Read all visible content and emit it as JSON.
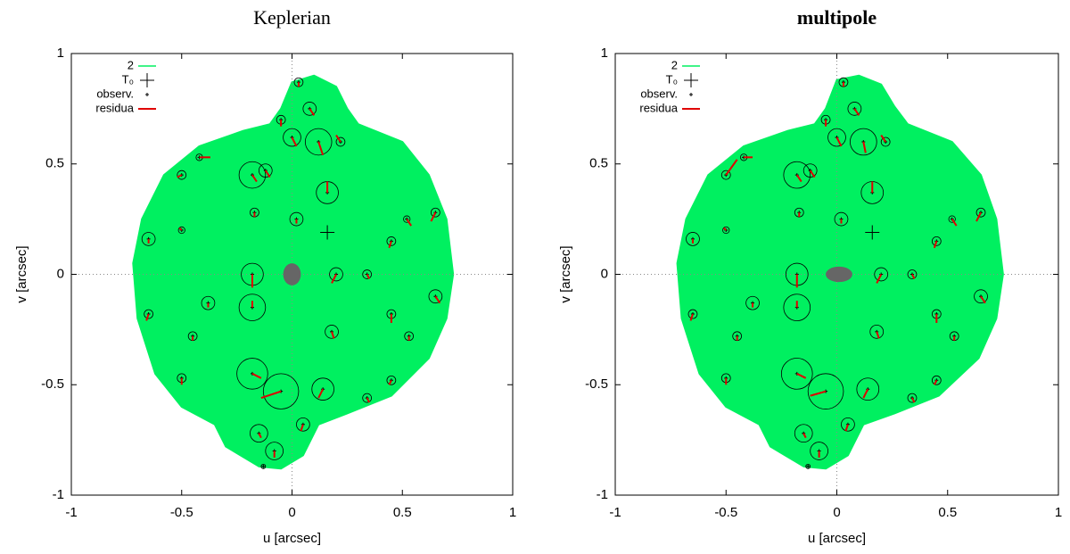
{
  "chart_data": [
    {
      "type": "scatter",
      "title": "Keplerian",
      "title_bold": false,
      "xlabel": "u [arcsec]",
      "ylabel": "v [arcsec]",
      "xlim": [
        -1,
        1
      ],
      "ylim": [
        -1,
        1
      ],
      "xticks": [
        -1,
        -0.5,
        0,
        0.5,
        1
      ],
      "yticks": [
        -1,
        -0.5,
        0,
        0.5,
        1
      ],
      "zero_lines": true,
      "legend": "upper left",
      "orbit": {
        "name": "2",
        "color": "#00f060",
        "x": [
          -0.05,
          0.0,
          0.1,
          0.2,
          0.25,
          0.3,
          0.5,
          0.62,
          0.7,
          0.73,
          0.7,
          0.62,
          0.45,
          0.25,
          0.12,
          0.05,
          -0.05,
          -0.15,
          -0.3,
          -0.35,
          -0.5,
          -0.62,
          -0.7,
          -0.72,
          -0.68,
          -0.58,
          -0.42,
          -0.22,
          -0.1
        ],
        "values": [
          0.75,
          0.87,
          0.9,
          0.85,
          0.75,
          0.68,
          0.6,
          0.45,
          0.25,
          0.0,
          -0.2,
          -0.38,
          -0.55,
          -0.63,
          -0.68,
          -0.82,
          -0.88,
          -0.87,
          -0.78,
          -0.68,
          -0.6,
          -0.45,
          -0.2,
          0.05,
          0.25,
          0.45,
          0.58,
          0.65,
          0.68
        ]
      },
      "t0": {
        "name": "T₀",
        "color": "#000",
        "x": 0.16,
        "value": 0.19
      },
      "body": {
        "color": "#666666",
        "x": 0,
        "value": 0,
        "rx": 0.04,
        "ry": 0.05
      },
      "observ": {
        "name": "observ.",
        "color": "#000",
        "x": [
          0.03,
          0.08,
          -0.05,
          0.0,
          0.12,
          0.22,
          -0.18,
          -0.12,
          -0.5,
          -0.42,
          0.16,
          0.02,
          -0.17,
          0.52,
          0.65,
          -0.65,
          -0.5,
          0.45,
          -0.18,
          -0.18,
          0.2,
          0.34,
          0.65,
          -0.38,
          -0.65,
          0.45,
          0.18,
          0.53,
          -0.45,
          -0.18,
          -0.05,
          0.14,
          0.34,
          0.45,
          -0.5,
          0.05,
          -0.15,
          -0.08,
          -0.13
        ],
        "values": [
          0.87,
          0.75,
          0.7,
          0.62,
          0.6,
          0.6,
          0.45,
          0.47,
          0.45,
          0.53,
          0.37,
          0.25,
          0.28,
          0.25,
          0.28,
          0.16,
          0.2,
          0.15,
          0.0,
          -0.15,
          0.0,
          0.0,
          -0.1,
          -0.13,
          -0.18,
          -0.18,
          -0.26,
          -0.28,
          -0.28,
          -0.45,
          -0.53,
          -0.52,
          -0.56,
          -0.48,
          -0.47,
          -0.68,
          -0.72,
          -0.8,
          -0.87
        ],
        "sizes": [
          0.02,
          0.03,
          0.02,
          0.04,
          0.06,
          0.02,
          0.06,
          0.03,
          0.02,
          0.015,
          0.05,
          0.03,
          0.02,
          0.015,
          0.02,
          0.03,
          0.015,
          0.02,
          0.05,
          0.06,
          0.03,
          0.02,
          0.03,
          0.03,
          0.02,
          0.02,
          0.03,
          0.02,
          0.02,
          0.07,
          0.08,
          0.05,
          0.02,
          0.02,
          0.02,
          0.03,
          0.04,
          0.04,
          0.01
        ]
      },
      "residua": {
        "name": "residua",
        "color": "#e00000",
        "x": [
          0.03,
          0.1,
          -0.05,
          0.02,
          0.14,
          0.2,
          -0.16,
          -0.1,
          -0.52,
          -0.37,
          0.16,
          0.02,
          -0.17,
          0.54,
          0.63,
          -0.65,
          -0.51,
          0.44,
          -0.18,
          -0.18,
          0.18,
          0.35,
          0.67,
          -0.38,
          -0.66,
          0.45,
          0.19,
          0.53,
          -0.45,
          -0.14,
          -0.14,
          0.12,
          0.35,
          0.44,
          -0.5,
          0.04,
          -0.14,
          -0.08,
          -0.13
        ],
        "values": [
          0.85,
          0.72,
          0.67,
          0.58,
          0.54,
          0.63,
          0.42,
          0.44,
          0.44,
          0.53,
          0.42,
          0.23,
          0.26,
          0.22,
          0.24,
          0.14,
          0.21,
          0.12,
          -0.06,
          -0.12,
          -0.04,
          -0.02,
          -0.13,
          -0.15,
          -0.21,
          -0.22,
          -0.29,
          -0.3,
          -0.3,
          -0.47,
          -0.56,
          -0.56,
          -0.58,
          -0.5,
          -0.5,
          -0.71,
          -0.74,
          -0.83,
          -0.87
        ]
      }
    },
    {
      "type": "scatter",
      "title": "multipole",
      "title_bold": true,
      "xlabel": "u [arcsec]",
      "ylabel": "v [arcsec]",
      "xlim": [
        -1,
        1
      ],
      "ylim": [
        -1,
        1
      ],
      "xticks": [
        -1,
        -0.5,
        0,
        0.5,
        1
      ],
      "yticks": [
        -1,
        -0.5,
        0,
        0.5,
        1
      ],
      "zero_lines": true,
      "legend": "upper left",
      "orbit": {
        "name": "2",
        "color": "#00f060",
        "x": [
          -0.05,
          0.0,
          0.1,
          0.2,
          0.26,
          0.32,
          0.52,
          0.65,
          0.72,
          0.75,
          0.72,
          0.64,
          0.46,
          0.26,
          0.12,
          0.05,
          -0.05,
          -0.15,
          -0.3,
          -0.35,
          -0.5,
          -0.62,
          -0.7,
          -0.72,
          -0.68,
          -0.58,
          -0.42,
          -0.22,
          -0.1
        ],
        "values": [
          0.75,
          0.88,
          0.9,
          0.86,
          0.76,
          0.68,
          0.6,
          0.45,
          0.25,
          0.0,
          -0.2,
          -0.38,
          -0.55,
          -0.63,
          -0.68,
          -0.82,
          -0.88,
          -0.87,
          -0.78,
          -0.68,
          -0.6,
          -0.45,
          -0.2,
          0.05,
          0.25,
          0.45,
          0.58,
          0.65,
          0.68
        ]
      },
      "t0": {
        "name": "T₀",
        "color": "#000",
        "x": 0.16,
        "value": 0.19
      },
      "body": {
        "color": "#666666",
        "x": 0.01,
        "value": 0,
        "rx": 0.06,
        "ry": 0.035
      },
      "observ": {
        "name": "observ.",
        "color": "#000",
        "x": [
          0.03,
          0.08,
          -0.05,
          0.0,
          0.12,
          0.22,
          -0.18,
          -0.12,
          -0.5,
          -0.42,
          0.16,
          0.02,
          -0.17,
          0.52,
          0.65,
          -0.65,
          -0.5,
          0.45,
          -0.18,
          -0.18,
          0.2,
          0.34,
          0.65,
          -0.38,
          -0.65,
          0.45,
          0.18,
          0.53,
          -0.45,
          -0.18,
          -0.05,
          0.14,
          0.34,
          0.45,
          -0.5,
          0.05,
          -0.15,
          -0.08,
          -0.13
        ],
        "values": [
          0.87,
          0.75,
          0.7,
          0.62,
          0.6,
          0.6,
          0.45,
          0.47,
          0.45,
          0.53,
          0.37,
          0.25,
          0.28,
          0.25,
          0.28,
          0.16,
          0.2,
          0.15,
          0.0,
          -0.15,
          0.0,
          0.0,
          -0.1,
          -0.13,
          -0.18,
          -0.18,
          -0.26,
          -0.28,
          -0.28,
          -0.45,
          -0.53,
          -0.52,
          -0.56,
          -0.48,
          -0.47,
          -0.68,
          -0.72,
          -0.8,
          -0.87
        ],
        "sizes": [
          0.02,
          0.03,
          0.02,
          0.04,
          0.06,
          0.02,
          0.06,
          0.03,
          0.02,
          0.015,
          0.05,
          0.03,
          0.02,
          0.015,
          0.02,
          0.03,
          0.015,
          0.02,
          0.05,
          0.06,
          0.03,
          0.02,
          0.03,
          0.03,
          0.02,
          0.02,
          0.03,
          0.02,
          0.02,
          0.07,
          0.08,
          0.05,
          0.02,
          0.02,
          0.02,
          0.03,
          0.04,
          0.04,
          0.01
        ]
      },
      "residua": {
        "name": "residua",
        "color": "#e00000",
        "x": [
          0.03,
          0.1,
          -0.05,
          0.02,
          0.13,
          0.2,
          -0.16,
          -0.1,
          -0.45,
          -0.38,
          0.16,
          0.02,
          -0.17,
          0.54,
          0.63,
          -0.65,
          -0.51,
          0.44,
          -0.18,
          -0.18,
          0.18,
          0.35,
          0.67,
          -0.38,
          -0.66,
          0.45,
          0.19,
          0.53,
          -0.45,
          -0.14,
          -0.12,
          0.12,
          0.35,
          0.44,
          -0.5,
          0.04,
          -0.14,
          -0.08,
          -0.13
        ],
        "values": [
          0.85,
          0.72,
          0.67,
          0.58,
          0.55,
          0.63,
          0.42,
          0.44,
          0.52,
          0.53,
          0.42,
          0.23,
          0.26,
          0.22,
          0.24,
          0.14,
          0.21,
          0.12,
          -0.06,
          -0.12,
          -0.04,
          -0.02,
          -0.13,
          -0.15,
          -0.21,
          -0.22,
          -0.29,
          -0.3,
          -0.3,
          -0.47,
          -0.55,
          -0.56,
          -0.58,
          -0.5,
          -0.5,
          -0.71,
          -0.74,
          -0.83,
          -0.87
        ]
      }
    }
  ]
}
